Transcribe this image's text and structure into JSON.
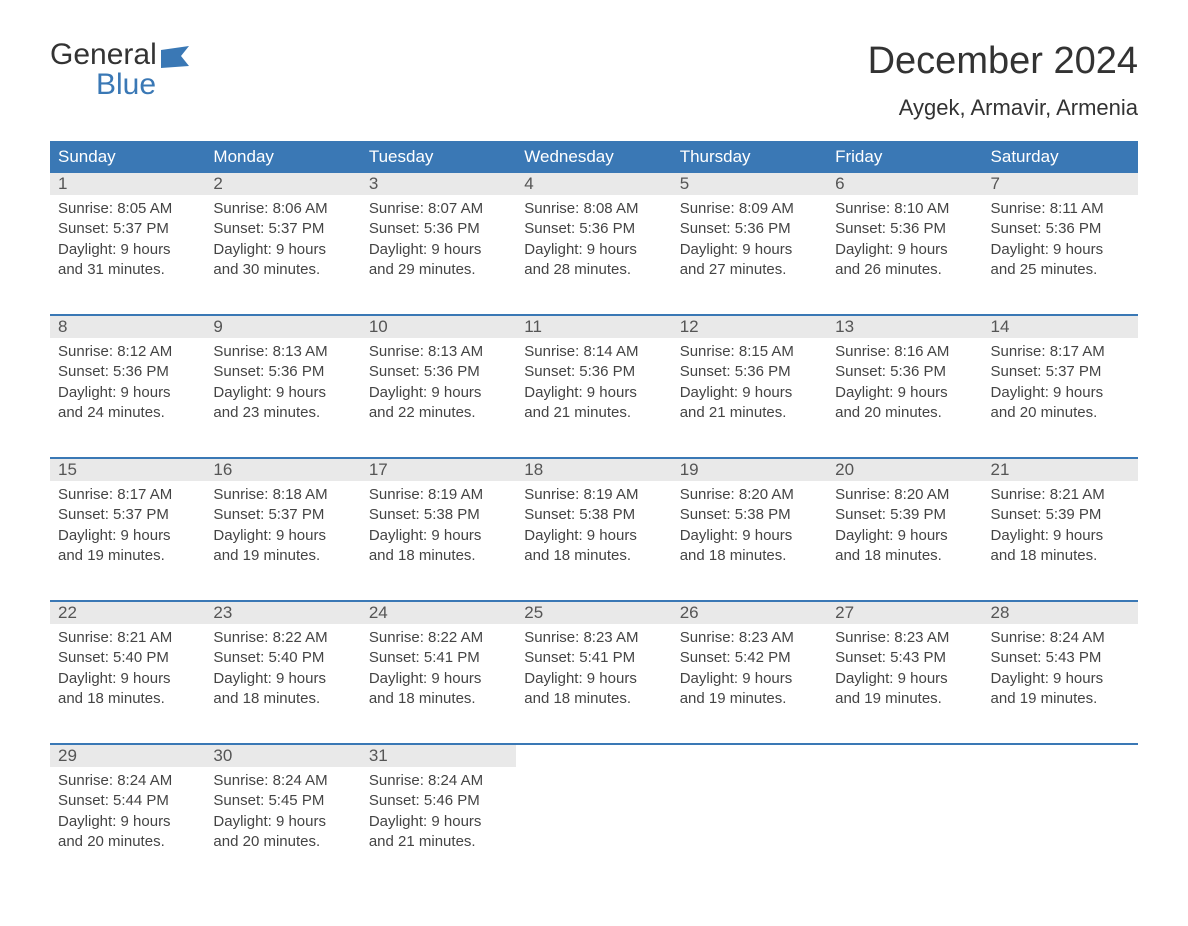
{
  "logo": {
    "top": "General",
    "bottom": "Blue"
  },
  "title": "December 2024",
  "location": "Aygek, Armavir, Armenia",
  "colors": {
    "header_bg": "#3a78b5",
    "header_text": "#ffffff",
    "daynum_bg": "#e9e9e9",
    "week_border": "#3a78b5",
    "body_text": "#444444",
    "page_bg": "#ffffff"
  },
  "day_names": [
    "Sunday",
    "Monday",
    "Tuesday",
    "Wednesday",
    "Thursday",
    "Friday",
    "Saturday"
  ],
  "weeks": [
    [
      {
        "n": "1",
        "sunrise": "8:05 AM",
        "sunset": "5:37 PM",
        "d1": "Daylight: 9 hours",
        "d2": "and 31 minutes."
      },
      {
        "n": "2",
        "sunrise": "8:06 AM",
        "sunset": "5:37 PM",
        "d1": "Daylight: 9 hours",
        "d2": "and 30 minutes."
      },
      {
        "n": "3",
        "sunrise": "8:07 AM",
        "sunset": "5:36 PM",
        "d1": "Daylight: 9 hours",
        "d2": "and 29 minutes."
      },
      {
        "n": "4",
        "sunrise": "8:08 AM",
        "sunset": "5:36 PM",
        "d1": "Daylight: 9 hours",
        "d2": "and 28 minutes."
      },
      {
        "n": "5",
        "sunrise": "8:09 AM",
        "sunset": "5:36 PM",
        "d1": "Daylight: 9 hours",
        "d2": "and 27 minutes."
      },
      {
        "n": "6",
        "sunrise": "8:10 AM",
        "sunset": "5:36 PM",
        "d1": "Daylight: 9 hours",
        "d2": "and 26 minutes."
      },
      {
        "n": "7",
        "sunrise": "8:11 AM",
        "sunset": "5:36 PM",
        "d1": "Daylight: 9 hours",
        "d2": "and 25 minutes."
      }
    ],
    [
      {
        "n": "8",
        "sunrise": "8:12 AM",
        "sunset": "5:36 PM",
        "d1": "Daylight: 9 hours",
        "d2": "and 24 minutes."
      },
      {
        "n": "9",
        "sunrise": "8:13 AM",
        "sunset": "5:36 PM",
        "d1": "Daylight: 9 hours",
        "d2": "and 23 minutes."
      },
      {
        "n": "10",
        "sunrise": "8:13 AM",
        "sunset": "5:36 PM",
        "d1": "Daylight: 9 hours",
        "d2": "and 22 minutes."
      },
      {
        "n": "11",
        "sunrise": "8:14 AM",
        "sunset": "5:36 PM",
        "d1": "Daylight: 9 hours",
        "d2": "and 21 minutes."
      },
      {
        "n": "12",
        "sunrise": "8:15 AM",
        "sunset": "5:36 PM",
        "d1": "Daylight: 9 hours",
        "d2": "and 21 minutes."
      },
      {
        "n": "13",
        "sunrise": "8:16 AM",
        "sunset": "5:36 PM",
        "d1": "Daylight: 9 hours",
        "d2": "and 20 minutes."
      },
      {
        "n": "14",
        "sunrise": "8:17 AM",
        "sunset": "5:37 PM",
        "d1": "Daylight: 9 hours",
        "d2": "and 20 minutes."
      }
    ],
    [
      {
        "n": "15",
        "sunrise": "8:17 AM",
        "sunset": "5:37 PM",
        "d1": "Daylight: 9 hours",
        "d2": "and 19 minutes."
      },
      {
        "n": "16",
        "sunrise": "8:18 AM",
        "sunset": "5:37 PM",
        "d1": "Daylight: 9 hours",
        "d2": "and 19 minutes."
      },
      {
        "n": "17",
        "sunrise": "8:19 AM",
        "sunset": "5:38 PM",
        "d1": "Daylight: 9 hours",
        "d2": "and 18 minutes."
      },
      {
        "n": "18",
        "sunrise": "8:19 AM",
        "sunset": "5:38 PM",
        "d1": "Daylight: 9 hours",
        "d2": "and 18 minutes."
      },
      {
        "n": "19",
        "sunrise": "8:20 AM",
        "sunset": "5:38 PM",
        "d1": "Daylight: 9 hours",
        "d2": "and 18 minutes."
      },
      {
        "n": "20",
        "sunrise": "8:20 AM",
        "sunset": "5:39 PM",
        "d1": "Daylight: 9 hours",
        "d2": "and 18 minutes."
      },
      {
        "n": "21",
        "sunrise": "8:21 AM",
        "sunset": "5:39 PM",
        "d1": "Daylight: 9 hours",
        "d2": "and 18 minutes."
      }
    ],
    [
      {
        "n": "22",
        "sunrise": "8:21 AM",
        "sunset": "5:40 PM",
        "d1": "Daylight: 9 hours",
        "d2": "and 18 minutes."
      },
      {
        "n": "23",
        "sunrise": "8:22 AM",
        "sunset": "5:40 PM",
        "d1": "Daylight: 9 hours",
        "d2": "and 18 minutes."
      },
      {
        "n": "24",
        "sunrise": "8:22 AM",
        "sunset": "5:41 PM",
        "d1": "Daylight: 9 hours",
        "d2": "and 18 minutes."
      },
      {
        "n": "25",
        "sunrise": "8:23 AM",
        "sunset": "5:41 PM",
        "d1": "Daylight: 9 hours",
        "d2": "and 18 minutes."
      },
      {
        "n": "26",
        "sunrise": "8:23 AM",
        "sunset": "5:42 PM",
        "d1": "Daylight: 9 hours",
        "d2": "and 19 minutes."
      },
      {
        "n": "27",
        "sunrise": "8:23 AM",
        "sunset": "5:43 PM",
        "d1": "Daylight: 9 hours",
        "d2": "and 19 minutes."
      },
      {
        "n": "28",
        "sunrise": "8:24 AM",
        "sunset": "5:43 PM",
        "d1": "Daylight: 9 hours",
        "d2": "and 19 minutes."
      }
    ],
    [
      {
        "n": "29",
        "sunrise": "8:24 AM",
        "sunset": "5:44 PM",
        "d1": "Daylight: 9 hours",
        "d2": "and 20 minutes."
      },
      {
        "n": "30",
        "sunrise": "8:24 AM",
        "sunset": "5:45 PM",
        "d1": "Daylight: 9 hours",
        "d2": "and 20 minutes."
      },
      {
        "n": "31",
        "sunrise": "8:24 AM",
        "sunset": "5:46 PM",
        "d1": "Daylight: 9 hours",
        "d2": "and 21 minutes."
      },
      {
        "empty": true
      },
      {
        "empty": true
      },
      {
        "empty": true
      },
      {
        "empty": true
      }
    ]
  ],
  "labels": {
    "sunrise_prefix": "Sunrise: ",
    "sunset_prefix": "Sunset: "
  }
}
